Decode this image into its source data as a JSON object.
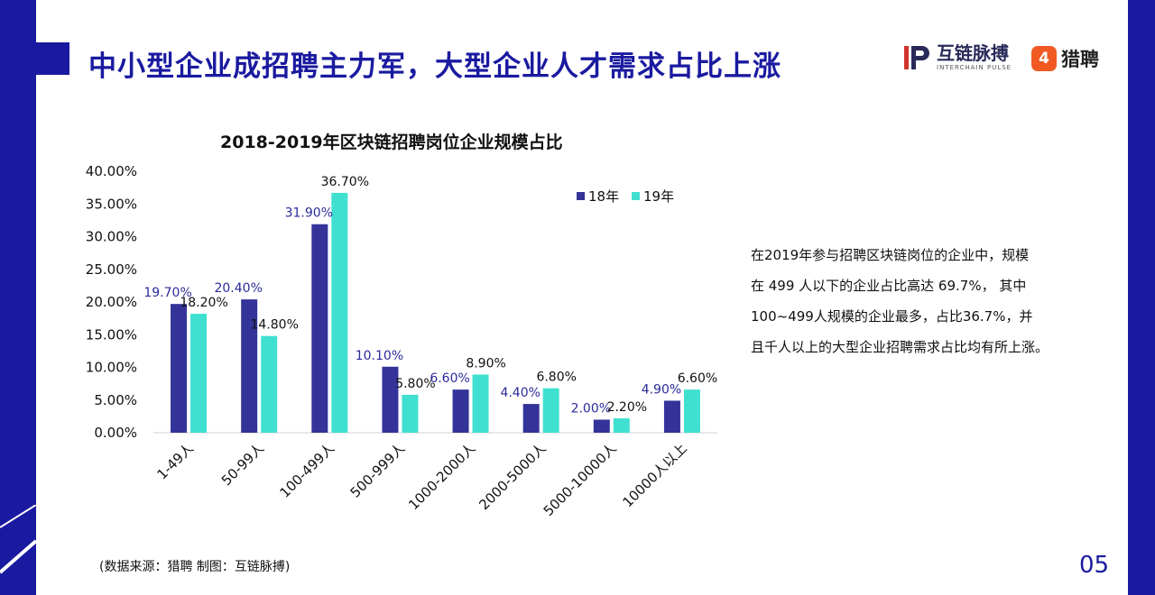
{
  "header": {
    "title": "中小型企业成招聘主力军，大型企业人才需求占比上涨",
    "logo1_name": "互链脉搏",
    "logo1_sub": "INTERCHAIN PULSE",
    "logo2_glyph": "4",
    "logo2_name": "猎聘"
  },
  "chart_data": {
    "type": "bar",
    "title": "2018-2019年区块链招聘岗位企业规模占比",
    "categories": [
      "1-49人",
      "50-99人",
      "100-499人",
      "500-999人",
      "1000-2000人",
      "2000-5000人",
      "5000-10000人",
      "10000人以上"
    ],
    "series": [
      {
        "name": "18年",
        "color": "#333399",
        "values": [
          19.7,
          20.4,
          31.9,
          10.1,
          6.6,
          4.4,
          2.0,
          4.9
        ],
        "labels": [
          "19.70%",
          "20.40%",
          "31.90%",
          "10.10%",
          "6.60%",
          "4.40%",
          "2.00%",
          "4.90%"
        ]
      },
      {
        "name": "19年",
        "color": "#40e0d0",
        "values": [
          18.2,
          14.8,
          36.7,
          5.8,
          8.9,
          6.8,
          2.2,
          6.6
        ],
        "labels": [
          "18.20%",
          "14.80%",
          "36.70%",
          "5.80%",
          "8.90%",
          "6.80%",
          "2.20%",
          "6.60%"
        ]
      }
    ],
    "yticks": [
      "0.00%",
      "5.00%",
      "10.00%",
      "15.00%",
      "20.00%",
      "25.00%",
      "30.00%",
      "35.00%",
      "40.00%"
    ],
    "ylim": [
      0,
      40
    ],
    "legend": "top-right",
    "grid": false
  },
  "description": [
    "在2019年参与招聘区块链岗位的企业中，规模",
    "在 499 人以下的企业占比高达 69.7%， 其中",
    "100~499人规模的企业最多，占比36.7%，并",
    "且千人以上的大型企业招聘需求占比均有所上涨。"
  ],
  "footer": {
    "source": "(数据来源：猎聘   制图：互链脉搏)",
    "page": "05"
  },
  "colors": {
    "brand": "#1a1aa0",
    "series18": "#333399",
    "series19": "#40e0d0",
    "label18": "#2b2b9a"
  }
}
